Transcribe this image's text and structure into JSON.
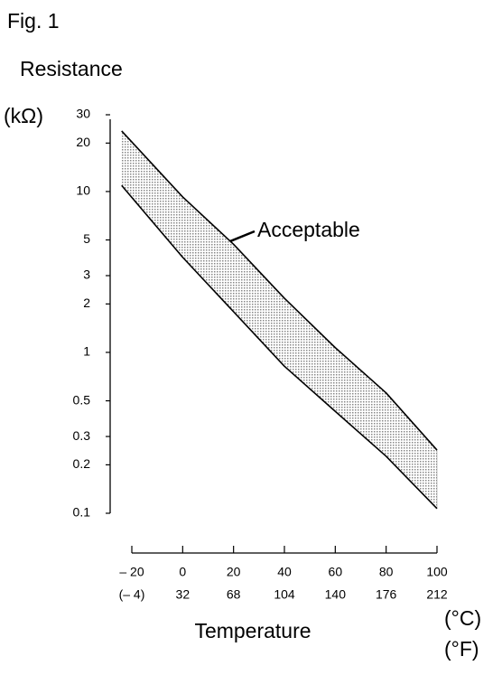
{
  "chart_data": {
    "type": "band",
    "figure_label": "Fig. 1",
    "y_label": "Resistance",
    "y_unit": "(kΩ)",
    "x_label": "Temperature",
    "x_unit": "(°C)",
    "x2_unit": "(°F)",
    "annotation": "Acceptable",
    "log_y": true,
    "ylim": [
      0.1,
      30
    ],
    "yticks": [
      30,
      20,
      10,
      5,
      3,
      2,
      1,
      0.5,
      0.3,
      0.2,
      0.1
    ],
    "xlim": [
      -20,
      100
    ],
    "xticks": [
      {
        "value": -20,
        "label": "– 20"
      },
      0,
      20,
      40,
      60,
      80,
      100
    ],
    "x2ticks": [
      {
        "value": -20,
        "label": "(– 4)"
      },
      {
        "value": 0,
        "label": "32"
      },
      {
        "value": 20,
        "label": "68"
      },
      {
        "value": 40,
        "label": "104"
      },
      {
        "value": 60,
        "label": "140"
      },
      {
        "value": 80,
        "label": "176"
      },
      {
        "value": 100,
        "label": "212"
      }
    ],
    "band": {
      "color": "#bdbdbd",
      "x": [
        -24,
        0,
        20,
        40,
        60,
        80,
        100
      ],
      "upper": [
        23.8,
        9.25,
        4.7,
        2.17,
        1.07,
        0.56,
        0.247
      ],
      "lower": [
        10.9,
        3.9,
        1.79,
        0.82,
        0.43,
        0.226,
        0.107
      ]
    }
  }
}
